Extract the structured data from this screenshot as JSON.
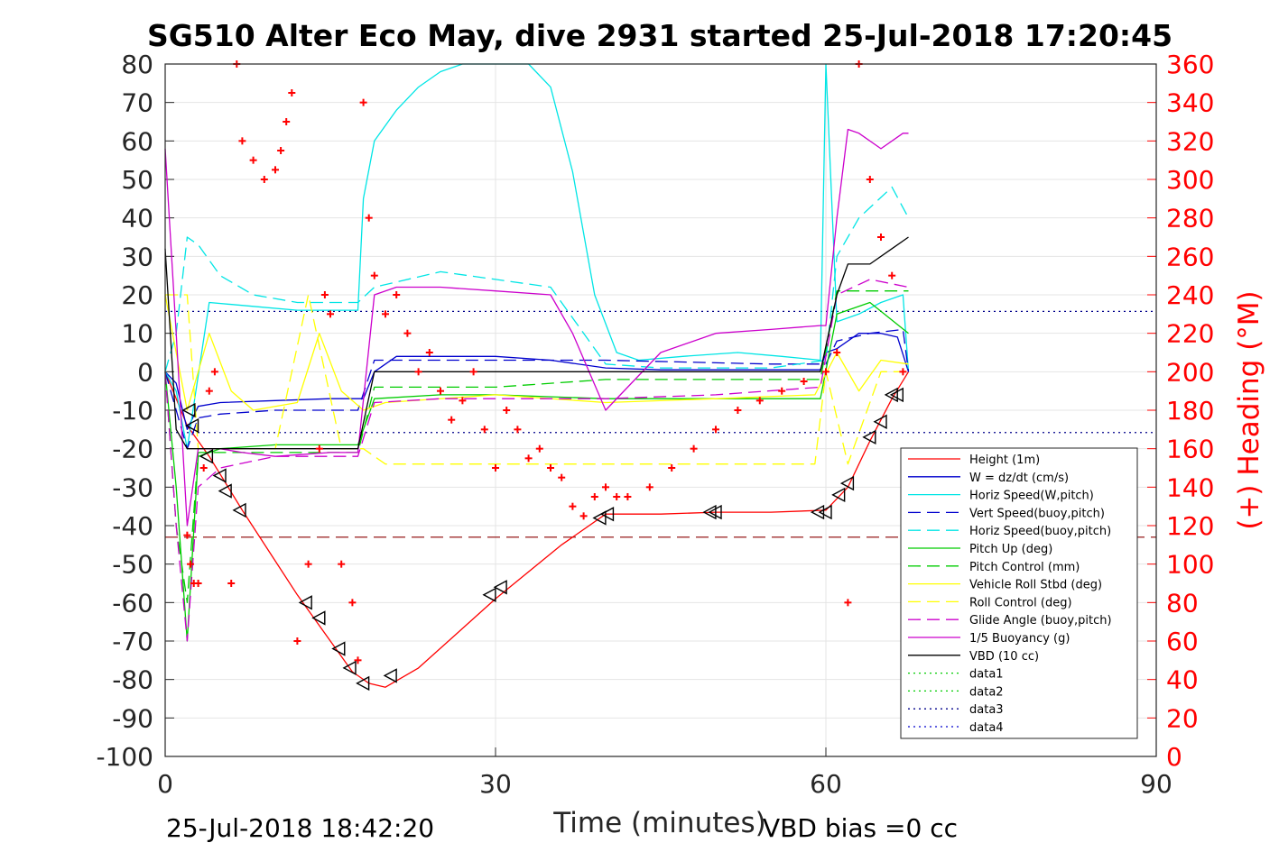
{
  "chart_data": {
    "type": "line",
    "title": "SG510 Alter Eco May, dive 2931 started 25-Jul-2018 17:20:45",
    "xlabel": "Time (minutes)",
    "ylabel_right": "(+) Heading (°M)",
    "xlim": [
      0,
      90
    ],
    "ylim": [
      -100,
      80
    ],
    "ylim_right": [
      0,
      360
    ],
    "x_ticks": [
      "0",
      "30",
      "60",
      "90"
    ],
    "y_ticks": [
      "80",
      "70",
      "60",
      "50",
      "40",
      "30",
      "20",
      "10",
      "0",
      "-10",
      "-20",
      "-30",
      "-40",
      "-50",
      "-60",
      "-70",
      "-80",
      "-90",
      "-100"
    ],
    "y_ticks_right": [
      "360",
      "340",
      "320",
      "300",
      "280",
      "260",
      "240",
      "220",
      "200",
      "180",
      "160",
      "140",
      "120",
      "100",
      "80",
      "60",
      "40",
      "20",
      "0"
    ],
    "grid": true,
    "legend_position": "lower-right",
    "footer_left": "25-Jul-2018 18:42:20",
    "footer_right": "VBD bias =0 cc",
    "series": [
      {
        "name": "Height (1m)",
        "color": "#ff0000",
        "style": "solid",
        "x": [
          0,
          2,
          4,
          7,
          12,
          17,
          18.5,
          20,
          23,
          30,
          36,
          40,
          45,
          50,
          55,
          60,
          62,
          64,
          66,
          67.5
        ],
        "y": [
          0,
          -14,
          -22,
          -36,
          -58,
          -78,
          -81,
          -82,
          -77,
          -59,
          -45,
          -37,
          -37,
          -36.5,
          -36.5,
          -36,
          -30,
          -18,
          -7,
          0
        ]
      },
      {
        "name": "W = dz/dt (cm/s)",
        "color": "#0000cd",
        "style": "solid",
        "x": [
          0,
          1,
          2,
          3,
          5,
          10,
          15,
          18,
          19,
          21,
          25,
          30,
          35,
          40,
          45,
          50,
          55,
          59.5,
          60,
          61,
          63,
          65,
          66.5,
          67.5
        ],
        "y": [
          0,
          -3,
          -15,
          -9,
          -8,
          -7.5,
          -7,
          -7,
          0,
          4,
          4,
          4,
          3,
          1,
          0.5,
          0.5,
          0.5,
          0.5,
          5,
          6,
          10,
          10,
          9,
          0
        ]
      },
      {
        "name": "Horiz Speed(W,pitch)",
        "color": "#00e5e5",
        "style": "solid",
        "x": [
          0,
          1,
          2,
          4,
          8,
          12,
          15,
          17.5,
          18,
          19,
          21,
          23,
          25,
          27,
          29,
          31,
          33,
          35,
          37,
          39,
          41,
          43,
          47,
          52,
          56,
          59.5,
          60,
          61,
          63,
          65,
          67,
          67.5
        ],
        "y": [
          0,
          -5,
          -20,
          18,
          17,
          16,
          16,
          16,
          45,
          60,
          68,
          74,
          78,
          82,
          85,
          84,
          82,
          74,
          52,
          20,
          5,
          3,
          4,
          5,
          4,
          3,
          80,
          13,
          15,
          18,
          20,
          0
        ]
      },
      {
        "name": "Vert Speed(buoy,pitch)",
        "color": "#0000cd",
        "style": "dashed",
        "x": [
          0,
          1,
          2,
          3,
          5,
          10,
          15,
          17.5,
          19,
          25,
          40,
          55,
          60,
          61,
          64,
          67,
          67.5
        ],
        "y": [
          0,
          -10,
          -20,
          -12,
          -11,
          -10,
          -10,
          -10,
          3,
          3,
          3,
          2,
          2,
          8,
          10,
          11,
          0
        ]
      },
      {
        "name": "Horiz Speed(buoy,pitch)",
        "color": "#00e5e5",
        "style": "dashed",
        "x": [
          0,
          1,
          2,
          3,
          5,
          8,
          12,
          17.5,
          19,
          25,
          30,
          35,
          40,
          45,
          55,
          60,
          61,
          63,
          66,
          67.5
        ],
        "y": [
          0,
          10,
          35,
          33,
          25,
          20,
          18,
          18,
          22,
          26,
          24,
          22,
          2,
          1,
          1,
          3,
          30,
          40,
          48,
          40
        ]
      },
      {
        "name": "Pitch Up (deg)",
        "color": "#00cc00",
        "style": "solid",
        "x": [
          0,
          1,
          2,
          3,
          5,
          10,
          17.5,
          19,
          25,
          30,
          40,
          50,
          59.5,
          61,
          64,
          67.5
        ],
        "y": [
          0,
          -30,
          -70,
          -22,
          -20,
          -19,
          -19,
          -7,
          -6,
          -6,
          -7,
          -7,
          -7,
          15,
          18,
          10
        ]
      },
      {
        "name": "Pitch Control (mm)",
        "color": "#00cc00",
        "style": "dashed",
        "x": [
          0,
          1,
          2,
          3,
          17.5,
          19,
          30,
          40,
          59.5,
          61,
          67.5
        ],
        "y": [
          0,
          -40,
          -60,
          -21,
          -21,
          -4,
          -4,
          -2,
          -2,
          21,
          21
        ]
      },
      {
        "name": "Vehicle Roll Stbd (deg)",
        "color": "#ffff00",
        "style": "solid",
        "x": [
          0,
          2,
          4,
          6,
          8,
          12,
          14,
          16,
          18,
          20,
          30,
          40,
          50,
          59,
          61,
          63,
          65,
          67.5
        ],
        "y": [
          20,
          -10,
          10,
          -5,
          -10,
          -8,
          10,
          -5,
          -10,
          -8,
          -6,
          -8,
          -7,
          -6,
          5,
          -5,
          3,
          2
        ]
      },
      {
        "name": "Roll Control (deg)",
        "color": "#ffff00",
        "style": "dashed",
        "x": [
          0,
          2,
          3,
          7,
          10,
          13,
          16,
          18,
          20,
          30,
          40,
          50,
          59,
          60,
          62,
          65,
          67.5
        ],
        "y": [
          20,
          20,
          -20,
          -20,
          -20,
          20,
          -20,
          -20,
          -24,
          -24,
          -24,
          -24,
          -24,
          0,
          -24,
          0,
          0
        ]
      },
      {
        "name": "Glide Angle (buoy,pitch)",
        "color": "#cc00cc",
        "style": "dashed",
        "x": [
          0,
          1,
          2,
          3,
          5,
          10,
          17.5,
          19,
          25,
          30,
          40,
          50,
          59.5,
          61,
          64,
          67.5
        ],
        "y": [
          0,
          -40,
          -70,
          -30,
          -25,
          -22,
          -22,
          -8,
          -7,
          -7,
          -7,
          -6,
          -4,
          20,
          24,
          22
        ]
      },
      {
        "name": "1/5 Buoyancy (g)",
        "color": "#cc00cc",
        "style": "solid",
        "x": [
          0,
          1,
          2,
          3,
          5,
          7,
          10,
          15,
          17.5,
          19,
          21,
          25,
          30,
          35,
          37,
          40,
          45,
          50,
          55,
          59.5,
          60,
          61,
          62,
          63,
          65,
          67,
          67.5
        ],
        "y": [
          58,
          10,
          -40,
          -20,
          -20,
          -21,
          -22,
          -21,
          -21,
          20,
          22,
          22,
          21,
          20,
          10,
          -10,
          5,
          10,
          11,
          12,
          12,
          40,
          63,
          62,
          58,
          62,
          62
        ]
      },
      {
        "name": "VBD (10 cc)",
        "color": "#000000",
        "style": "solid",
        "x": [
          0,
          1,
          2,
          3,
          17.5,
          19,
          59.5,
          61,
          62,
          64,
          66,
          67.5
        ],
        "y": [
          32,
          -15,
          -20,
          -20,
          -20,
          0,
          0,
          20,
          28,
          28,
          32,
          35
        ]
      },
      {
        "name": "data1",
        "color": "#00cc00",
        "style": "dotted",
        "x": [],
        "y": []
      },
      {
        "name": "data2",
        "color": "#00cc00",
        "style": "dotted",
        "x": [],
        "y": []
      },
      {
        "name": "data3",
        "color": "#00008b",
        "style": "dotted",
        "x": [],
        "y": []
      },
      {
        "name": "data4",
        "color": "#0000cd",
        "style": "dotted",
        "x": [],
        "y": []
      }
    ],
    "reference_lines": [
      {
        "color": "#00008b",
        "style": "dotted",
        "y": 15.7
      },
      {
        "color": "#00008b",
        "style": "dotted",
        "y": -15.8
      },
      {
        "color": "#8b0000",
        "style": "dashed",
        "y": -43
      }
    ],
    "heading_points": {
      "color": "#ff0000",
      "x": [
        2,
        2.3,
        2.6,
        3,
        3.5,
        4,
        4.5,
        6,
        6.5,
        7,
        8,
        9,
        10,
        10.5,
        11,
        11.5,
        12,
        13,
        14,
        14.5,
        15,
        16,
        17,
        17.5,
        18,
        18.5,
        19,
        20,
        21,
        22,
        23,
        24,
        25,
        26,
        27,
        28,
        29,
        30,
        31,
        32,
        33,
        34,
        35,
        36,
        37,
        38,
        39,
        40,
        41,
        42,
        44,
        46,
        48,
        50,
        52,
        54,
        56,
        58,
        60,
        61,
        62,
        63,
        64,
        65,
        66,
        67
      ],
      "y": [
        115,
        100,
        90,
        90,
        150,
        190,
        200,
        90,
        360,
        320,
        310,
        300,
        305,
        315,
        330,
        345,
        60,
        100,
        160,
        240,
        230,
        100,
        80,
        50,
        340,
        280,
        250,
        230,
        240,
        220,
        200,
        210,
        190,
        175,
        185,
        200,
        170,
        150,
        180,
        170,
        155,
        160,
        150,
        145,
        130,
        125,
        135,
        140,
        135,
        135,
        140,
        150,
        160,
        170,
        180,
        185,
        190,
        195,
        200,
        210,
        80,
        360,
        300,
        270,
        250,
        200
      ]
    },
    "triangle_markers": {
      "x": [
        2.2,
        2.5,
        3.8,
        5,
        5.5,
        6.8,
        12.8,
        14,
        15.8,
        16.8,
        18,
        20.5,
        29.5,
        30.5,
        39.5,
        40.2,
        49.5,
        50,
        59.3,
        60,
        61.2,
        62,
        64,
        65,
        66,
        66.5
      ],
      "y": [
        -10,
        -14,
        -22,
        -27,
        -31,
        -36,
        -60,
        -64,
        -72,
        -77,
        -81,
        -79,
        -58,
        -56,
        -38,
        -37,
        -36.5,
        -36.5,
        -36.5,
        -36.5,
        -32,
        -29,
        -17,
        -13,
        -6,
        -6
      ]
    }
  }
}
